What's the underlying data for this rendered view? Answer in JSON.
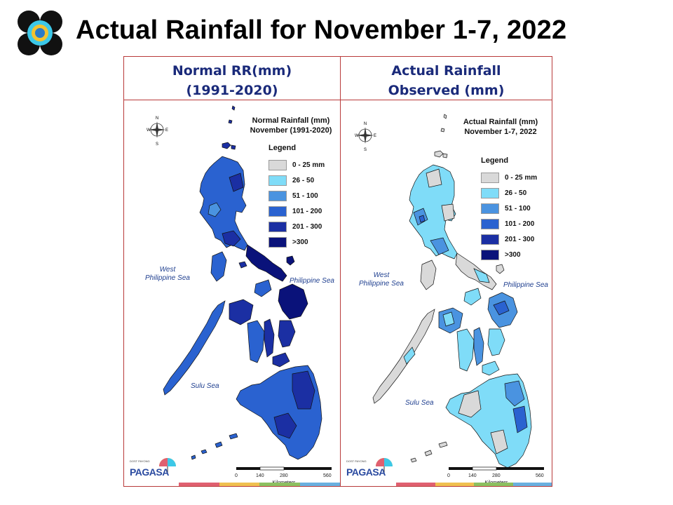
{
  "title": "Actual Rainfall for November 1-7, 2022",
  "left_panel": {
    "header_line1": "Normal RR(mm)",
    "header_line2": "(1991-2020)",
    "map_title_line1": "Normal Rainfall (mm)",
    "map_title_line2": "November (1991-2020)",
    "dominant_classes": [
      "101 - 200",
      "201 - 300"
    ]
  },
  "right_panel": {
    "header_line1": "Actual Rainfall",
    "header_line2": "Observed  (mm)",
    "map_title_line1": "Actual Rainfall (mm)",
    "map_title_line2": "November 1-7, 2022",
    "dominant_classes": [
      "0 - 25 mm",
      "26 - 50",
      "51 - 100"
    ]
  },
  "legend": {
    "title": "Legend",
    "items": [
      {
        "label": "0 - 25 mm",
        "color": "#d9d9d9"
      },
      {
        "label": "26 - 50",
        "color": "#7fdcf8"
      },
      {
        "label": "51 - 100",
        "color": "#4a93e0"
      },
      {
        "label": "101 - 200",
        "color": "#2a62d0"
      },
      {
        "label": "201 - 300",
        "color": "#1b2fa3"
      },
      {
        "label": ">300",
        "color": "#0a127a"
      }
    ]
  },
  "seas": {
    "west_line1": "West",
    "west_line2": "Philippine Sea",
    "east": "Philippine Sea",
    "sulu": "Sulu Sea"
  },
  "compass": {
    "n": "N",
    "s": "S",
    "e": "E",
    "w": "W"
  },
  "scale_bar": {
    "ticks": [
      "0",
      "140",
      "280",
      "560"
    ],
    "unit": "Kilometers"
  },
  "agency": {
    "name": "PAGASA",
    "small": "DOST  PAYONG"
  },
  "bottom_bar_colors": [
    "#e06070",
    "#f0c050",
    "#8cc060",
    "#6ab0e0"
  ],
  "colors": {
    "title": "#000000",
    "header_text": "#1a2a7a",
    "frame": "#b83a3a"
  }
}
